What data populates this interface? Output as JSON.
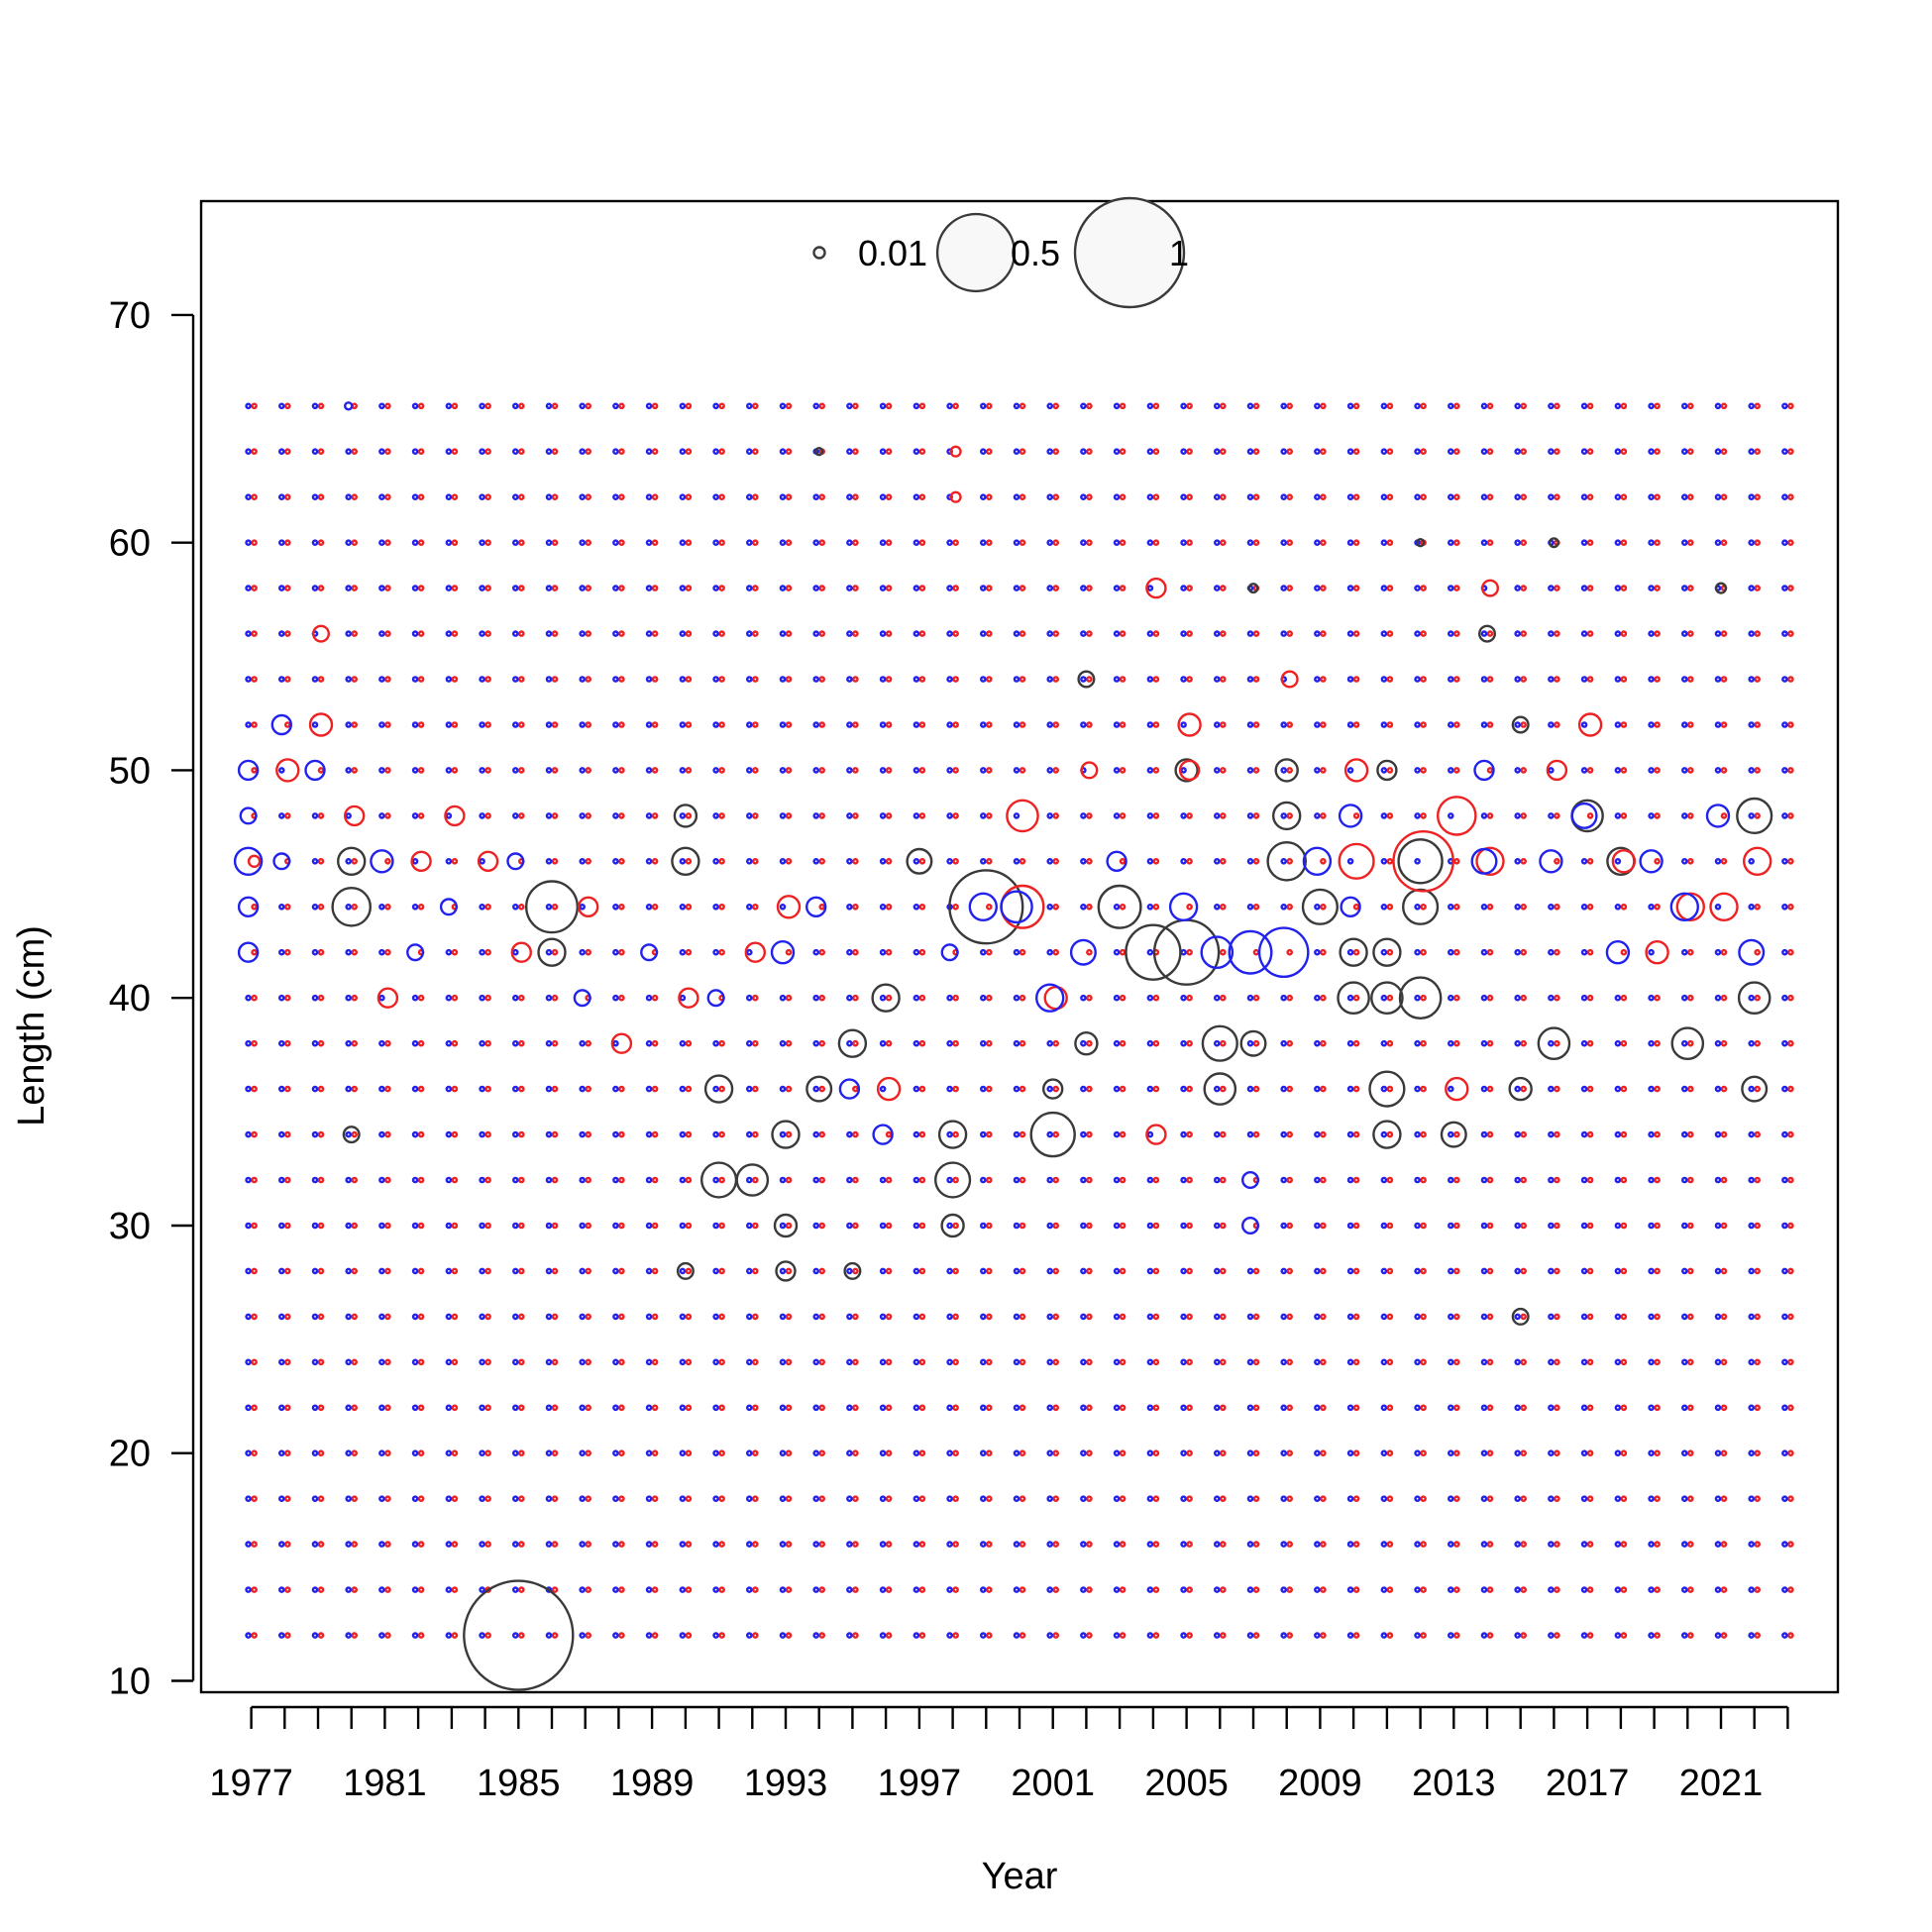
{
  "chart_data": {
    "type": "scatter",
    "subtype": "bubble",
    "xlabel": "Year",
    "ylabel": "Length (cm)",
    "xlim": [
      1975.5,
      2024.5
    ],
    "ylim": [
      9.5,
      75
    ],
    "x_ticks": [
      1977,
      1978,
      1979,
      1980,
      1981,
      1982,
      1983,
      1984,
      1985,
      1986,
      1987,
      1988,
      1989,
      1990,
      1991,
      1992,
      1993,
      1994,
      1995,
      1996,
      1997,
      1998,
      1999,
      2000,
      2001,
      2002,
      2003,
      2004,
      2005,
      2006,
      2007,
      2008,
      2009,
      2010,
      2011,
      2012,
      2013,
      2014,
      2015,
      2016,
      2017,
      2018,
      2019,
      2020,
      2021,
      2022,
      2023
    ],
    "x_tick_labels": [
      "1977",
      "1981",
      "1985",
      "1989",
      "1993",
      "1997",
      "2001",
      "2005",
      "2009",
      "2013",
      "2017",
      "2021"
    ],
    "y_ticks": [
      10,
      20,
      30,
      40,
      50,
      60,
      70
    ],
    "y_tick_labels": [
      "10",
      "20",
      "30",
      "40",
      "50",
      "60",
      "70"
    ],
    "grid": false,
    "bubble_scale": "radius proportional to sqrt(proportion)",
    "legend": {
      "placement": "top-center",
      "entries": [
        {
          "value": 0.01,
          "label": "0.01"
        },
        {
          "value": 0.5,
          "label": "0.5"
        },
        {
          "value": 1,
          "label": "1"
        }
      ]
    },
    "colors": {
      "black": "#3a3a3a",
      "red": "#ee2222",
      "blue": "#2222ee"
    },
    "lengths": [
      12,
      14,
      16,
      18,
      20,
      22,
      24,
      26,
      28,
      30,
      32,
      34,
      36,
      38,
      40,
      42,
      44,
      46,
      48,
      50,
      52,
      54,
      56,
      58,
      60,
      62,
      64,
      66
    ],
    "years": [
      1977,
      1978,
      1979,
      1980,
      1981,
      1982,
      1983,
      1984,
      1985,
      1986,
      1987,
      1988,
      1989,
      1990,
      1991,
      1992,
      1993,
      1994,
      1995,
      1996,
      1997,
      1998,
      1999,
      2000,
      2001,
      2002,
      2003,
      2004,
      2005,
      2006,
      2007,
      2008,
      2009,
      2010,
      2011,
      2012,
      2013,
      2014,
      2015,
      2016,
      2017,
      2018,
      2019,
      2020,
      2021,
      2022,
      2023
    ],
    "background_value": 0.0015,
    "series": [
      {
        "color": "black",
        "points": [
          [
            1985,
            12,
            1.0
          ],
          [
            1986,
            44,
            0.22
          ],
          [
            1986,
            42,
            0.06
          ],
          [
            1980,
            44,
            0.12
          ],
          [
            1980,
            46,
            0.06
          ],
          [
            1980,
            34,
            0.02
          ],
          [
            1990,
            48,
            0.04
          ],
          [
            1990,
            46,
            0.06
          ],
          [
            1990,
            28,
            0.02
          ],
          [
            1991,
            36,
            0.06
          ],
          [
            1991,
            32,
            0.1
          ],
          [
            1992,
            32,
            0.08
          ],
          [
            1993,
            30,
            0.04
          ],
          [
            1993,
            34,
            0.06
          ],
          [
            1993,
            28,
            0.03
          ],
          [
            1994,
            36,
            0.05
          ],
          [
            1995,
            38,
            0.06
          ],
          [
            1995,
            28,
            0.02
          ],
          [
            1996,
            40,
            0.06
          ],
          [
            1997,
            46,
            0.05
          ],
          [
            1998,
            32,
            0.1
          ],
          [
            1998,
            30,
            0.04
          ],
          [
            1998,
            34,
            0.06
          ],
          [
            1999,
            44,
            0.45
          ],
          [
            2001,
            34,
            0.16
          ],
          [
            2001,
            36,
            0.03
          ],
          [
            2002,
            38,
            0.04
          ],
          [
            2002,
            54,
            0.02
          ],
          [
            2003,
            44,
            0.15
          ],
          [
            2004,
            42,
            0.25
          ],
          [
            2005,
            42,
            0.35
          ],
          [
            2005,
            50,
            0.04
          ],
          [
            2006,
            38,
            0.1
          ],
          [
            2006,
            36,
            0.08
          ],
          [
            2007,
            38,
            0.05
          ],
          [
            2008,
            46,
            0.12
          ],
          [
            2008,
            48,
            0.06
          ],
          [
            2008,
            50,
            0.04
          ],
          [
            2009,
            44,
            0.1
          ],
          [
            2010,
            40,
            0.08
          ],
          [
            2010,
            42,
            0.06
          ],
          [
            2011,
            36,
            0.1
          ],
          [
            2011,
            34,
            0.06
          ],
          [
            2011,
            40,
            0.08
          ],
          [
            2011,
            42,
            0.06
          ],
          [
            2011,
            50,
            0.03
          ],
          [
            2012,
            40,
            0.14
          ],
          [
            2012,
            46,
            0.16
          ],
          [
            2012,
            44,
            0.1
          ],
          [
            2013,
            34,
            0.05
          ],
          [
            2015,
            26,
            0.02
          ],
          [
            2015,
            36,
            0.04
          ],
          [
            2016,
            38,
            0.08
          ],
          [
            2017,
            48,
            0.08
          ],
          [
            2018,
            46,
            0.06
          ],
          [
            2020,
            38,
            0.08
          ],
          [
            2022,
            48,
            0.1
          ],
          [
            2022,
            40,
            0.08
          ],
          [
            2022,
            36,
            0.05
          ],
          [
            2015,
            52,
            0.02
          ],
          [
            2014,
            56,
            0.02
          ],
          [
            2012,
            60,
            0.004
          ],
          [
            2016,
            60,
            0.006
          ],
          [
            2021,
            58,
            0.008
          ],
          [
            2007,
            58,
            0.006
          ],
          [
            1994,
            64,
            0.004
          ]
        ]
      },
      {
        "color": "red",
        "points": [
          [
            1977,
            46,
            0.01
          ],
          [
            1978,
            50,
            0.04
          ],
          [
            1979,
            52,
            0.04
          ],
          [
            1979,
            56,
            0.02
          ],
          [
            1980,
            48,
            0.03
          ],
          [
            1981,
            40,
            0.03
          ],
          [
            1982,
            46,
            0.03
          ],
          [
            1983,
            48,
            0.03
          ],
          [
            1984,
            46,
            0.03
          ],
          [
            1985,
            42,
            0.03
          ],
          [
            1987,
            44,
            0.03
          ],
          [
            1988,
            38,
            0.03
          ],
          [
            1990,
            40,
            0.03
          ],
          [
            1992,
            42,
            0.03
          ],
          [
            1993,
            44,
            0.04
          ],
          [
            1996,
            36,
            0.04
          ],
          [
            1998,
            62,
            0.008
          ],
          [
            1998,
            64,
            0.008
          ],
          [
            2000,
            44,
            0.15
          ],
          [
            2000,
            48,
            0.08
          ],
          [
            2001,
            40,
            0.04
          ],
          [
            2002,
            50,
            0.02
          ],
          [
            2004,
            58,
            0.03
          ],
          [
            2004,
            34,
            0.03
          ],
          [
            2005,
            52,
            0.04
          ],
          [
            2005,
            50,
            0.03
          ],
          [
            2008,
            54,
            0.02
          ],
          [
            2010,
            46,
            0.1
          ],
          [
            2010,
            50,
            0.04
          ],
          [
            2012,
            46,
            0.3
          ],
          [
            2013,
            48,
            0.12
          ],
          [
            2013,
            36,
            0.04
          ],
          [
            2014,
            58,
            0.02
          ],
          [
            2014,
            46,
            0.06
          ],
          [
            2016,
            50,
            0.03
          ],
          [
            2017,
            52,
            0.04
          ],
          [
            2018,
            46,
            0.04
          ],
          [
            2019,
            42,
            0.04
          ],
          [
            2020,
            44,
            0.06
          ],
          [
            2021,
            44,
            0.06
          ],
          [
            2022,
            46,
            0.06
          ]
        ]
      },
      {
        "color": "blue",
        "points": [
          [
            1977,
            46,
            0.06
          ],
          [
            1977,
            50,
            0.03
          ],
          [
            1977,
            48,
            0.02
          ],
          [
            1977,
            44,
            0.03
          ],
          [
            1977,
            42,
            0.03
          ],
          [
            1978,
            52,
            0.03
          ],
          [
            1978,
            46,
            0.02
          ],
          [
            1979,
            50,
            0.03
          ],
          [
            1980,
            66,
            0.004
          ],
          [
            1981,
            46,
            0.04
          ],
          [
            1982,
            42,
            0.02
          ],
          [
            1983,
            44,
            0.02
          ],
          [
            1985,
            46,
            0.02
          ],
          [
            1987,
            40,
            0.02
          ],
          [
            1989,
            42,
            0.02
          ],
          [
            1991,
            40,
            0.02
          ],
          [
            1993,
            42,
            0.04
          ],
          [
            1994,
            44,
            0.03
          ],
          [
            1995,
            36,
            0.03
          ],
          [
            1996,
            34,
            0.03
          ],
          [
            1998,
            42,
            0.02
          ],
          [
            1999,
            44,
            0.06
          ],
          [
            2000,
            44,
            0.08
          ],
          [
            2001,
            40,
            0.06
          ],
          [
            2002,
            42,
            0.05
          ],
          [
            2003,
            46,
            0.03
          ],
          [
            2005,
            44,
            0.06
          ],
          [
            2006,
            42,
            0.08
          ],
          [
            2007,
            42,
            0.15
          ],
          [
            2008,
            42,
            0.2
          ],
          [
            2007,
            32,
            0.02
          ],
          [
            2007,
            30,
            0.02
          ],
          [
            2009,
            46,
            0.06
          ],
          [
            2010,
            48,
            0.04
          ],
          [
            2010,
            44,
            0.03
          ],
          [
            2014,
            50,
            0.03
          ],
          [
            2014,
            46,
            0.05
          ],
          [
            2016,
            46,
            0.04
          ],
          [
            2017,
            48,
            0.05
          ],
          [
            2018,
            42,
            0.04
          ],
          [
            2019,
            46,
            0.04
          ],
          [
            2020,
            44,
            0.06
          ],
          [
            2021,
            48,
            0.04
          ],
          [
            2022,
            42,
            0.05
          ]
        ]
      }
    ]
  }
}
